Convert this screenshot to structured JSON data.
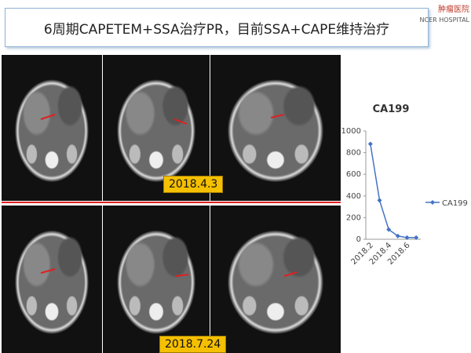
{
  "header": {
    "title": "6周期CAPETEM+SSA治疗PR，目前SSA+CAPE维持治疗"
  },
  "logo": {
    "name": "肿瘤医院",
    "english": "NCER HOSPITAL"
  },
  "images": [
    {
      "label": "2018.4.3"
    },
    {
      "label": "2018.7.24"
    }
  ],
  "chart_data": {
    "type": "line",
    "title": "CA199",
    "categories": [
      "2018.2",
      null,
      "2018.4",
      null,
      "2018.6",
      null
    ],
    "series": [
      {
        "name": "CA199",
        "color": "#4472c4",
        "values": [
          880,
          360,
          90,
          30,
          15,
          15
        ]
      }
    ],
    "ylim": [
      0,
      1000
    ],
    "yticks": [
      0,
      200,
      400,
      600,
      800,
      1000
    ],
    "grid": false,
    "legend": "right"
  }
}
